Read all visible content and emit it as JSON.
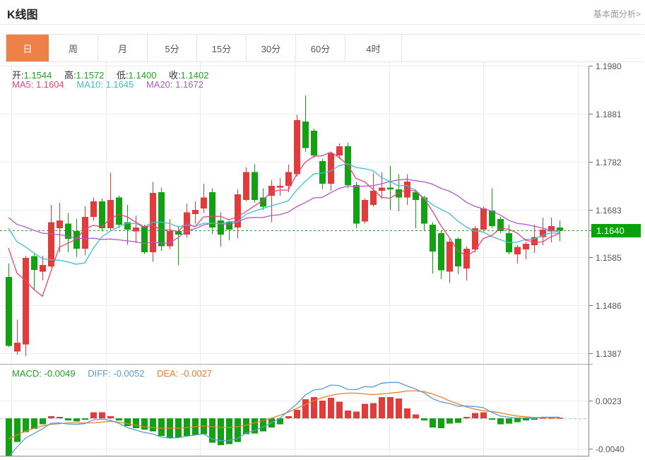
{
  "header": {
    "title": "K线图",
    "link_label": "基本面分析>"
  },
  "tabs": [
    {
      "label": "日",
      "name": "tab-day",
      "active": true
    },
    {
      "label": "周",
      "name": "tab-week",
      "active": false
    },
    {
      "label": "月",
      "name": "tab-month",
      "active": false
    },
    {
      "label": "5分",
      "name": "tab-5min",
      "active": false
    },
    {
      "label": "15分",
      "name": "tab-15min",
      "active": false
    },
    {
      "label": "30分",
      "name": "tab-30min",
      "active": false
    },
    {
      "label": "60分",
      "name": "tab-60min",
      "active": false
    },
    {
      "label": "4时",
      "name": "tab-4hour",
      "active": false
    }
  ],
  "legend": {
    "ohlc": [
      {
        "label": "开:",
        "value": "1.1544"
      },
      {
        "label": "高:",
        "value": "1.1572"
      },
      {
        "label": "低:",
        "value": "1.1400"
      },
      {
        "label": "收:",
        "value": "1.1402"
      }
    ],
    "ma": [
      {
        "label": "MA5:",
        "value": "1.1604"
      },
      {
        "label": "MA10:",
        "value": "1.1645"
      },
      {
        "label": "MA20:",
        "value": "1.1672"
      }
    ],
    "macd": [
      {
        "label": "MACD:",
        "value": "-0.0049"
      },
      {
        "label": "DIFF:",
        "value": "-0.0052"
      },
      {
        "label": "DEA:",
        "value": "-0.0027"
      }
    ]
  },
  "price_marker": {
    "value": "1.1640"
  },
  "colors": {
    "up": "#e23b3b",
    "down": "#12a112",
    "tab_active": "#ee8147",
    "ohlc_value": "#1fa61f",
    "ma5": "#e8437a",
    "ma10": "#3ec0cf",
    "ma20": "#b05ac8",
    "macd_text": "#1fa31f",
    "diff": "#5b9bd5",
    "dea": "#ef7c28",
    "marker_bg": "#09a309",
    "dashed_price": "#2aa52a",
    "dashed_zero": "#a8cbe8",
    "grid": "#ececec",
    "axis_line": "#888888",
    "tick": "#777777"
  },
  "chart_data": {
    "type": "candlestick_with_macd",
    "title": "K线图",
    "price_axis_labels": [
      "1.1980",
      "1.1881",
      "1.1782",
      "1.1683",
      "1.1585",
      "1.1486",
      "1.1387"
    ],
    "macd_axis_labels": [
      "0.0023",
      "-0.0040"
    ],
    "current_price": 1.164,
    "price_range": {
      "top": 1.198,
      "bottom": 1.1387
    },
    "macd_axis_values": [
      0.0023,
      -0.004
    ],
    "candles": [
      [
        1.1544,
        1.1572,
        1.14,
        1.1402
      ],
      [
        1.1391,
        1.1456,
        1.1384,
        1.1409
      ],
      [
        1.1405,
        1.1588,
        1.1381,
        1.1584
      ],
      [
        1.1587,
        1.1592,
        1.1518,
        1.1559
      ],
      [
        1.1555,
        1.1588,
        1.1537,
        1.1569
      ],
      [
        1.1566,
        1.1693,
        1.1564,
        1.1657
      ],
      [
        1.1645,
        1.1697,
        1.1595,
        1.1661
      ],
      [
        1.1654,
        1.1676,
        1.1595,
        1.1623
      ],
      [
        1.1639,
        1.1664,
        1.1586,
        1.1603
      ],
      [
        1.1603,
        1.169,
        1.1589,
        1.1668
      ],
      [
        1.1668,
        1.1708,
        1.166,
        1.17
      ],
      [
        1.17,
        1.1706,
        1.1638,
        1.1645
      ],
      [
        1.1645,
        1.1759,
        1.164,
        1.1703
      ],
      [
        1.1708,
        1.1712,
        1.1645,
        1.1652
      ],
      [
        1.1657,
        1.1693,
        1.1611,
        1.1642
      ],
      [
        1.1638,
        1.1671,
        1.1614,
        1.1646
      ],
      [
        1.1649,
        1.1652,
        1.1592,
        1.1595
      ],
      [
        1.1595,
        1.174,
        1.1576,
        1.1718
      ],
      [
        1.1719,
        1.1729,
        1.1598,
        1.1608
      ],
      [
        1.1608,
        1.1664,
        1.1602,
        1.1639
      ],
      [
        1.1639,
        1.1649,
        1.1569,
        1.1632
      ],
      [
        1.1632,
        1.1696,
        1.1625,
        1.1678
      ],
      [
        1.1674,
        1.17,
        1.1654,
        1.1683
      ],
      [
        1.1686,
        1.1737,
        1.1676,
        1.1708
      ],
      [
        1.1719,
        1.1727,
        1.1633,
        1.1646
      ],
      [
        1.1661,
        1.1678,
        1.1606,
        1.1632
      ],
      [
        1.1657,
        1.166,
        1.162,
        1.1642
      ],
      [
        1.1646,
        1.1725,
        1.1624,
        1.1715
      ],
      [
        1.1703,
        1.177,
        1.17,
        1.1761
      ],
      [
        1.1761,
        1.1777,
        1.1697,
        1.1703
      ],
      [
        1.1708,
        1.1727,
        1.1683,
        1.1689
      ],
      [
        1.1712,
        1.1744,
        1.1657,
        1.1732
      ],
      [
        1.1729,
        1.1748,
        1.1712,
        1.1732
      ],
      [
        1.1732,
        1.1776,
        1.1719,
        1.1761
      ],
      [
        1.1756,
        1.1879,
        1.1751,
        1.1868
      ],
      [
        1.1865,
        1.1919,
        1.1802,
        1.181
      ],
      [
        1.1846,
        1.185,
        1.179,
        1.1795
      ],
      [
        1.1783,
        1.1788,
        1.1726,
        1.1737
      ],
      [
        1.1737,
        1.1802,
        1.1722,
        1.1799
      ],
      [
        1.1795,
        1.182,
        1.1788,
        1.1814
      ],
      [
        1.1814,
        1.1821,
        1.1727,
        1.1734
      ],
      [
        1.1734,
        1.174,
        1.1645,
        1.1654
      ],
      [
        1.1659,
        1.1707,
        1.1654,
        1.1703
      ],
      [
        1.1693,
        1.1759,
        1.1689,
        1.1722
      ],
      [
        1.1722,
        1.1761,
        1.1705,
        1.1729
      ],
      [
        1.1729,
        1.1773,
        1.1683,
        1.1725
      ],
      [
        1.1725,
        1.1756,
        1.168,
        1.1708
      ],
      [
        1.1708,
        1.1756,
        1.1693,
        1.1741
      ],
      [
        1.1719,
        1.1725,
        1.1645,
        1.1703
      ],
      [
        1.1708,
        1.1712,
        1.1639,
        1.1654
      ],
      [
        1.1652,
        1.1657,
        1.1552,
        1.1597
      ],
      [
        1.1635,
        1.1639,
        1.154,
        1.1558
      ],
      [
        1.1555,
        1.1623,
        1.1532,
        1.1617
      ],
      [
        1.1623,
        1.1626,
        1.155,
        1.1566
      ],
      [
        1.1562,
        1.1608,
        1.1537,
        1.1603
      ],
      [
        1.1601,
        1.1649,
        1.1595,
        1.1645
      ],
      [
        1.1642,
        1.169,
        1.1638,
        1.1686
      ],
      [
        1.1681,
        1.1727,
        1.1645,
        1.1649
      ],
      [
        1.1664,
        1.1668,
        1.1635,
        1.1639
      ],
      [
        1.1635,
        1.1652,
        1.1591,
        1.1595
      ],
      [
        1.1591,
        1.161,
        1.1572,
        1.1606
      ],
      [
        1.1601,
        1.1617,
        1.1581,
        1.1613
      ],
      [
        1.161,
        1.1653,
        1.1594,
        1.1627
      ],
      [
        1.1627,
        1.1667,
        1.161,
        1.1642
      ],
      [
        1.1638,
        1.1667,
        1.1616,
        1.1649
      ],
      [
        1.1646,
        1.1661,
        1.1618,
        1.164
      ]
    ],
    "ma_periods": [
      5,
      10,
      20
    ],
    "ma_seed_closes": [
      1.1694,
      1.1692,
      1.169,
      1.1689,
      1.1688,
      1.1689,
      1.1688,
      1.1687,
      1.1686,
      1.1686,
      1.169,
      1.1688,
      1.1686,
      1.1684,
      1.1682,
      1.1668,
      1.166,
      1.165,
      1.164
    ],
    "macd_hist": [
      -0.0049,
      -0.0031,
      -0.0018,
      -0.0014,
      -0.0008,
      0.0003,
      0.0002,
      -0.0003,
      -0.0004,
      -0.0002,
      0.0008,
      0.0008,
      0.0003,
      -0.0003,
      -0.001,
      -0.0013,
      -0.0015,
      -0.0017,
      -0.0023,
      -0.0026,
      -0.0025,
      -0.0023,
      -0.0022,
      -0.0021,
      -0.0032,
      -0.0035,
      -0.0034,
      -0.0031,
      -0.0021,
      -0.002,
      -0.0017,
      -0.0012,
      -0.0008,
      0.0003,
      0.0011,
      0.0025,
      0.0028,
      0.0023,
      0.0027,
      0.0022,
      0.001,
      0.0009,
      0.0019,
      0.002,
      0.0028,
      0.0028,
      0.0026,
      0.0013,
      0.0005,
      -0.0003,
      -0.0012,
      -0.0013,
      -0.0007,
      -0.0006,
      0.0002,
      0.0007,
      0.0008,
      -0.0002,
      -0.0008,
      -0.0007,
      -0.0005,
      -0.0003,
      -0.0002,
      0.0001,
      0.0001,
      0.0001
    ],
    "macd_dea": [
      -0.0027,
      -0.0022,
      -0.0017,
      -0.0013,
      -0.001,
      -0.0008,
      -0.0007,
      -0.0006,
      -0.0006,
      -0.0006,
      -0.0006,
      -0.0005,
      -0.0004,
      -0.0005,
      -0.0007,
      -0.0009,
      -0.0011,
      -0.0012,
      -0.0013,
      -0.0013,
      -0.0013,
      -0.0012,
      -0.0011,
      -0.001,
      -0.0011,
      -0.0012,
      -0.0012,
      -0.0011,
      -0.0009,
      -0.0006,
      -0.0003,
      0.0,
      0.0004,
      0.0008,
      0.0013,
      0.0018,
      0.0023,
      0.0027,
      0.003,
      0.0032,
      0.0033,
      0.0033,
      0.0032,
      0.0031,
      0.0032,
      0.0033,
      0.0034,
      0.0036,
      0.0036,
      0.0035,
      0.0032,
      0.0028,
      0.0023,
      0.0019,
      0.0015,
      0.0012,
      0.001,
      0.0009,
      0.0007,
      0.0005,
      0.0003,
      0.0002,
      0.0001,
      0.0001,
      0.0001,
      0.0001
    ]
  }
}
